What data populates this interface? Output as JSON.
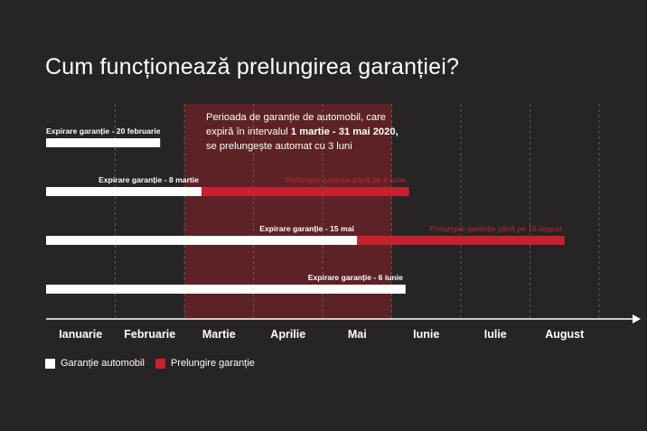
{
  "title": "Cum funcționează prelungirea garanției?",
  "colors": {
    "background": "#262424",
    "warranty": "#ffffff",
    "extension": "#c8202e",
    "period_band": "#5c2226",
    "axis": "#ffffff"
  },
  "note": {
    "line1": "Perioada de garanție de automobil, care",
    "line2_prefix": "expiră în intervalul ",
    "line2_bold": "1 martie - 31 mai 2020,",
    "line3": "se prelungește automat cu 3 luni"
  },
  "legend": {
    "warranty_label": "Garanție automobil",
    "extension_label": "Prelungire garanție"
  },
  "chart_data": {
    "type": "bar",
    "orientation": "horizontal-timeline",
    "categories": [
      "Ianuarie",
      "Februarie",
      "Martie",
      "Aprilie",
      "Mai",
      "Iunie",
      "Iulie",
      "August"
    ],
    "x_unit": "months (0 = start of Ianuarie)",
    "xlim": [
      0,
      8
    ],
    "highlight_period": {
      "start": 2.0,
      "end": 5.0
    },
    "series": [
      {
        "name": "Garanție automobil",
        "color": "#ffffff"
      },
      {
        "name": "Prelungire garanție",
        "color": "#c8202e"
      }
    ],
    "bars": [
      {
        "label": "Expirare garanție - 20 februarie",
        "warranty_end": 1.65,
        "extension_end": null,
        "extension_label": ""
      },
      {
        "label": "Expirare garanție - 8 martie",
        "warranty_end": 2.25,
        "extension_end": 5.25,
        "extension_label": "Prelungire garanție până pe 8 iunie"
      },
      {
        "label": "Expirare garanție - 15 mai",
        "warranty_end": 4.5,
        "extension_end": 7.5,
        "extension_label": "Prelungire garanție până pe 15 august"
      },
      {
        "label": "Expirare garanție - 6 iunie",
        "warranty_end": 5.2,
        "extension_end": null,
        "extension_label": ""
      }
    ],
    "grid": "vertical-dashed"
  }
}
